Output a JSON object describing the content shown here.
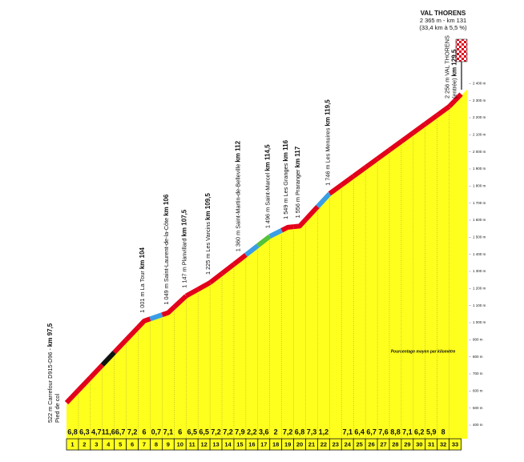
{
  "chart_data": {
    "type": "climb-profile",
    "summit": {
      "name": "VAL THORENS",
      "detail": "2 365 m - km 131",
      "stats": "(33,4 km à 5,5 %)"
    },
    "legend_note": "Pourcentage moyen par kilomètre",
    "xlim": [
      97.5,
      131
    ],
    "ylim": [
      400,
      2500
    ],
    "yticks": [
      {
        "value": 400,
        "label": "400 m"
      },
      {
        "value": 500,
        "label": "500 m"
      },
      {
        "value": 600,
        "label": "600 m"
      },
      {
        "value": 700,
        "label": "700 m"
      },
      {
        "value": 800,
        "label": "800 m"
      },
      {
        "value": 900,
        "label": "900 m"
      },
      {
        "value": 1000,
        "label": "1 000 m"
      },
      {
        "value": 1100,
        "label": "1 100 m"
      },
      {
        "value": 1200,
        "label": "1 200 m"
      },
      {
        "value": 1300,
        "label": "1 300 m"
      },
      {
        "value": 1400,
        "label": "1 400 m"
      },
      {
        "value": 1500,
        "label": "1 500 m"
      },
      {
        "value": 1600,
        "label": "1 600 m"
      },
      {
        "value": 1700,
        "label": "1 700 m"
      },
      {
        "value": 1800,
        "label": "1 800 m"
      },
      {
        "value": 1900,
        "label": "1 900 m"
      },
      {
        "value": 2000,
        "label": "2 000 m"
      },
      {
        "value": 2100,
        "label": "2 100 m"
      },
      {
        "value": 2200,
        "label": "2 200 m"
      },
      {
        "value": 2300,
        "label": "2 300 m"
      },
      {
        "value": 2400,
        "label": "2 400 m"
      }
    ],
    "profile": {
      "x": [
        97.5,
        104,
        106,
        107.5,
        109.5,
        112,
        114.5,
        116,
        117,
        119.5,
        129.5,
        131
      ],
      "y": [
        522,
        1001,
        1049,
        1147,
        1225,
        1360,
        1496,
        1549,
        1556,
        1746,
        2256,
        2365
      ]
    },
    "labels": [
      {
        "lines": [
          [
            {
              "text": "522 m Carrefour D915-D96 - "
            },
            {
              "text": "km 97,5",
              "bold": true
            }
          ],
          [
            {
              "text": "Pied de col"
            }
          ]
        ]
      },
      {
        "lines": [
          [
            {
              "text": "1 001 m La Tour "
            },
            {
              "text": "km 104",
              "bold": true
            }
          ]
        ]
      },
      {
        "lines": [
          [
            {
              "text": "1 049 m Saint-Laurent-de-la-Côte "
            },
            {
              "text": "km 106",
              "bold": true
            }
          ]
        ]
      },
      {
        "lines": [
          [
            {
              "text": "1 147 m Planvillard "
            },
            {
              "text": "km 107,5",
              "bold": true
            }
          ]
        ]
      },
      {
        "lines": [
          [
            {
              "text": "1 225 m Les Varcins "
            },
            {
              "text": "km 109,5",
              "bold": true
            }
          ]
        ]
      },
      {
        "lines": [
          [
            {
              "text": "1 360 m Saint-Martin-de-Belleville "
            },
            {
              "text": "km 112",
              "bold": true
            }
          ]
        ]
      },
      {
        "lines": [
          [
            {
              "text": "1 496 m Saint-Marcel "
            },
            {
              "text": "km 114,5",
              "bold": true
            }
          ]
        ]
      },
      {
        "lines": [
          [
            {
              "text": "1 549 m Les Granges "
            },
            {
              "text": "km 116",
              "bold": true
            }
          ]
        ]
      },
      {
        "lines": [
          [
            {
              "text": "1 556 m Praranger "
            },
            {
              "text": "km 117",
              "bold": true
            }
          ]
        ]
      },
      {
        "lines": [
          [
            {
              "text": "1 746 m Les Menuires "
            },
            {
              "text": "km 119,5",
              "bold": true
            }
          ]
        ]
      },
      {
        "lines": [
          [
            {
              "text": "2 256 m VAL THORENS"
            }
          ],
          [
            {
              "text": "(entrée) "
            },
            {
              "text": "km 129,5",
              "bold": true
            }
          ]
        ]
      }
    ],
    "categories": [
      1,
      2,
      3,
      4,
      5,
      6,
      7,
      8,
      9,
      10,
      11,
      12,
      13,
      14,
      15,
      16,
      17,
      18,
      19,
      20,
      21,
      22,
      23,
      24,
      25,
      26,
      27,
      28,
      29,
      30,
      31,
      32,
      33
    ],
    "values": [
      6.8,
      6.3,
      4.7,
      11.6,
      6.7,
      7.2,
      6,
      0.7,
      7.1,
      6,
      6.5,
      6.5,
      7.2,
      7.2,
      7.9,
      2.2,
      3.6,
      2,
      7.2,
      6.8,
      7.3,
      1.2,
      null,
      7.1,
      6.4,
      6.7,
      7.6,
      8.8,
      7.1,
      6.2,
      5.9,
      8,
      null
    ],
    "value_labels": [
      "6,8",
      "6,3",
      "4,7",
      "11,6",
      "6,7",
      "7,2",
      "6",
      "0,7",
      "7,1",
      "6",
      "6,5",
      "6,5",
      "7,2",
      "7,2",
      "7,9",
      "2,2",
      "3,6",
      "2",
      "7,2",
      "6,8",
      "7,3",
      "1,2",
      null,
      "7,1",
      "6,4",
      "6,7",
      "7,6",
      "8,8",
      "7,1",
      "6,2",
      "5,9",
      "8",
      null
    ],
    "fill_color": "#ffff1e",
    "default_band_color": "#e2001a",
    "gradient_colors": [
      {
        "min": 10,
        "color": "#111111"
      },
      {
        "min": 4,
        "color": "#e2001a"
      },
      {
        "min": 3,
        "color": "#55c23a"
      },
      {
        "min": 0,
        "color": "#3a9ee4"
      }
    ]
  }
}
